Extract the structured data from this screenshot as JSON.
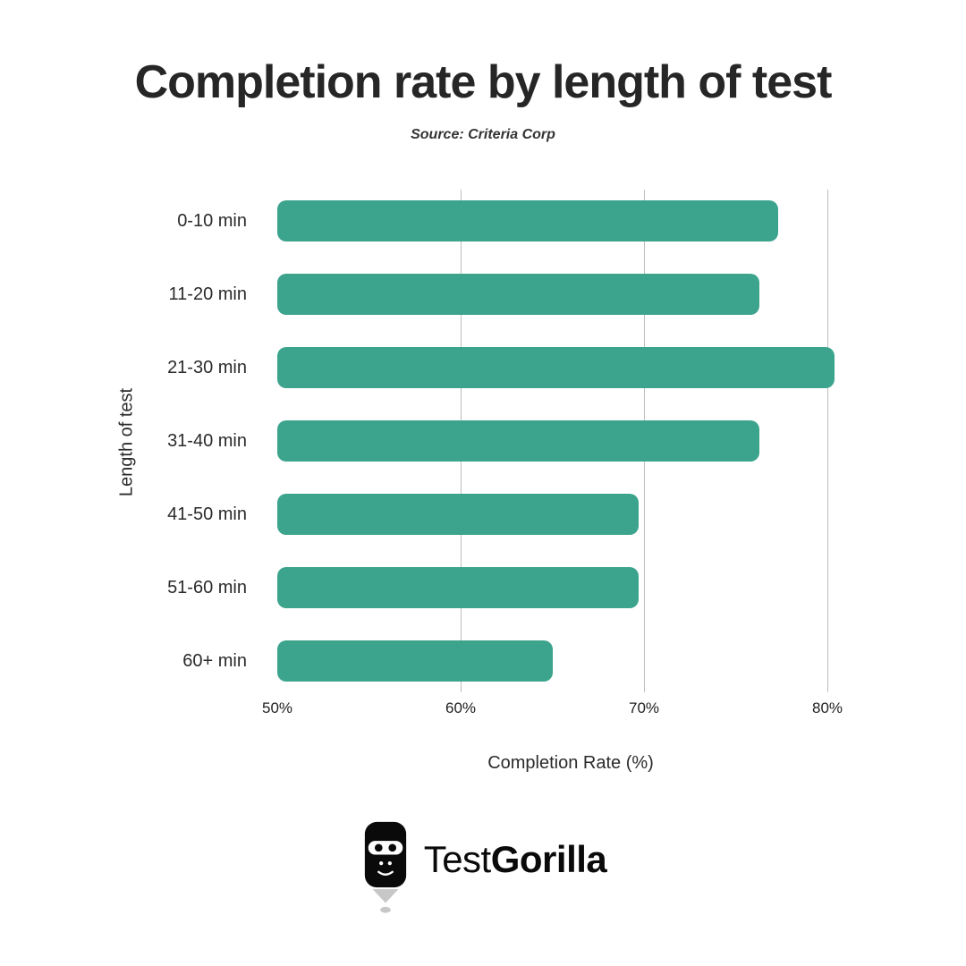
{
  "title": "Completion rate by length of test",
  "source": "Source: Criteria Corp",
  "chart_data": {
    "type": "bar",
    "orientation": "horizontal",
    "title": "Completion rate by length of test",
    "subtitle": "Source: Criteria Corp",
    "categories": [
      "0-10 min",
      "11-20 min",
      "21-30 min",
      "31-40 min",
      "41-50 min",
      "51-60 min",
      "60+ min"
    ],
    "values": [
      77.3,
      76.3,
      80.4,
      76.3,
      69.7,
      69.7,
      65.0
    ],
    "xlabel": "Completion Rate (%)",
    "ylabel": "Length of test",
    "xlim": [
      50,
      82
    ],
    "xticks": [
      50,
      60,
      70,
      80
    ],
    "xtick_labels": [
      "50%",
      "60%",
      "70%",
      "80%"
    ],
    "bar_color": "#3CA48D",
    "grid": true,
    "legend_position": "none"
  },
  "logo": {
    "text_regular": "Test",
    "text_bold": "Gorilla",
    "icon": "gorilla-pencil-icon"
  }
}
